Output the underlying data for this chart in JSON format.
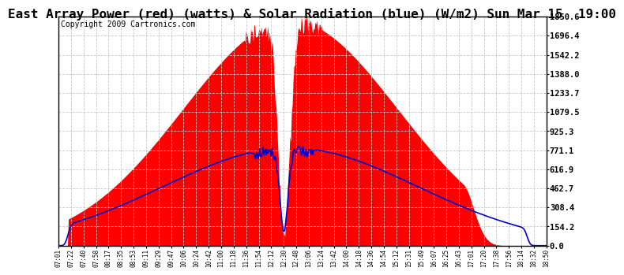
{
  "title": "East Array Power (red) (watts) & Solar Radiation (blue) (W/m2) Sun Mar 15  19:00",
  "copyright": "Copyright 2009 Cartronics.com",
  "background_color": "#ffffff",
  "plot_bg_color": "#ffffff",
  "grid_color": "#c8c8c8",
  "x_tick_labels": [
    "07:01",
    "07:22",
    "07:40",
    "07:58",
    "08:17",
    "08:35",
    "08:53",
    "09:11",
    "09:29",
    "09:47",
    "10:06",
    "10:24",
    "10:42",
    "11:00",
    "11:18",
    "11:36",
    "11:54",
    "12:12",
    "12:30",
    "12:48",
    "13:06",
    "13:24",
    "13:42",
    "14:00",
    "14:18",
    "14:36",
    "14:54",
    "15:12",
    "15:31",
    "15:49",
    "16:07",
    "16:25",
    "16:43",
    "17:01",
    "17:20",
    "17:38",
    "17:56",
    "18:14",
    "18:32",
    "18:50"
  ],
  "y_tick_labels": [
    "0.0",
    "154.2",
    "308.4",
    "462.7",
    "616.9",
    "771.1",
    "925.3",
    "1079.5",
    "1233.7",
    "1388.0",
    "1542.2",
    "1696.4",
    "1850.6"
  ],
  "y_tick_values": [
    0.0,
    154.2,
    308.4,
    462.7,
    616.9,
    771.1,
    925.3,
    1079.5,
    1233.7,
    1388.0,
    1542.2,
    1696.4,
    1850.6
  ],
  "ylim": [
    0.0,
    1850.6
  ],
  "fill_color": "#ff0000",
  "line_color": "#0000cc",
  "title_fontsize": 11.5,
  "copyright_fontsize": 7
}
